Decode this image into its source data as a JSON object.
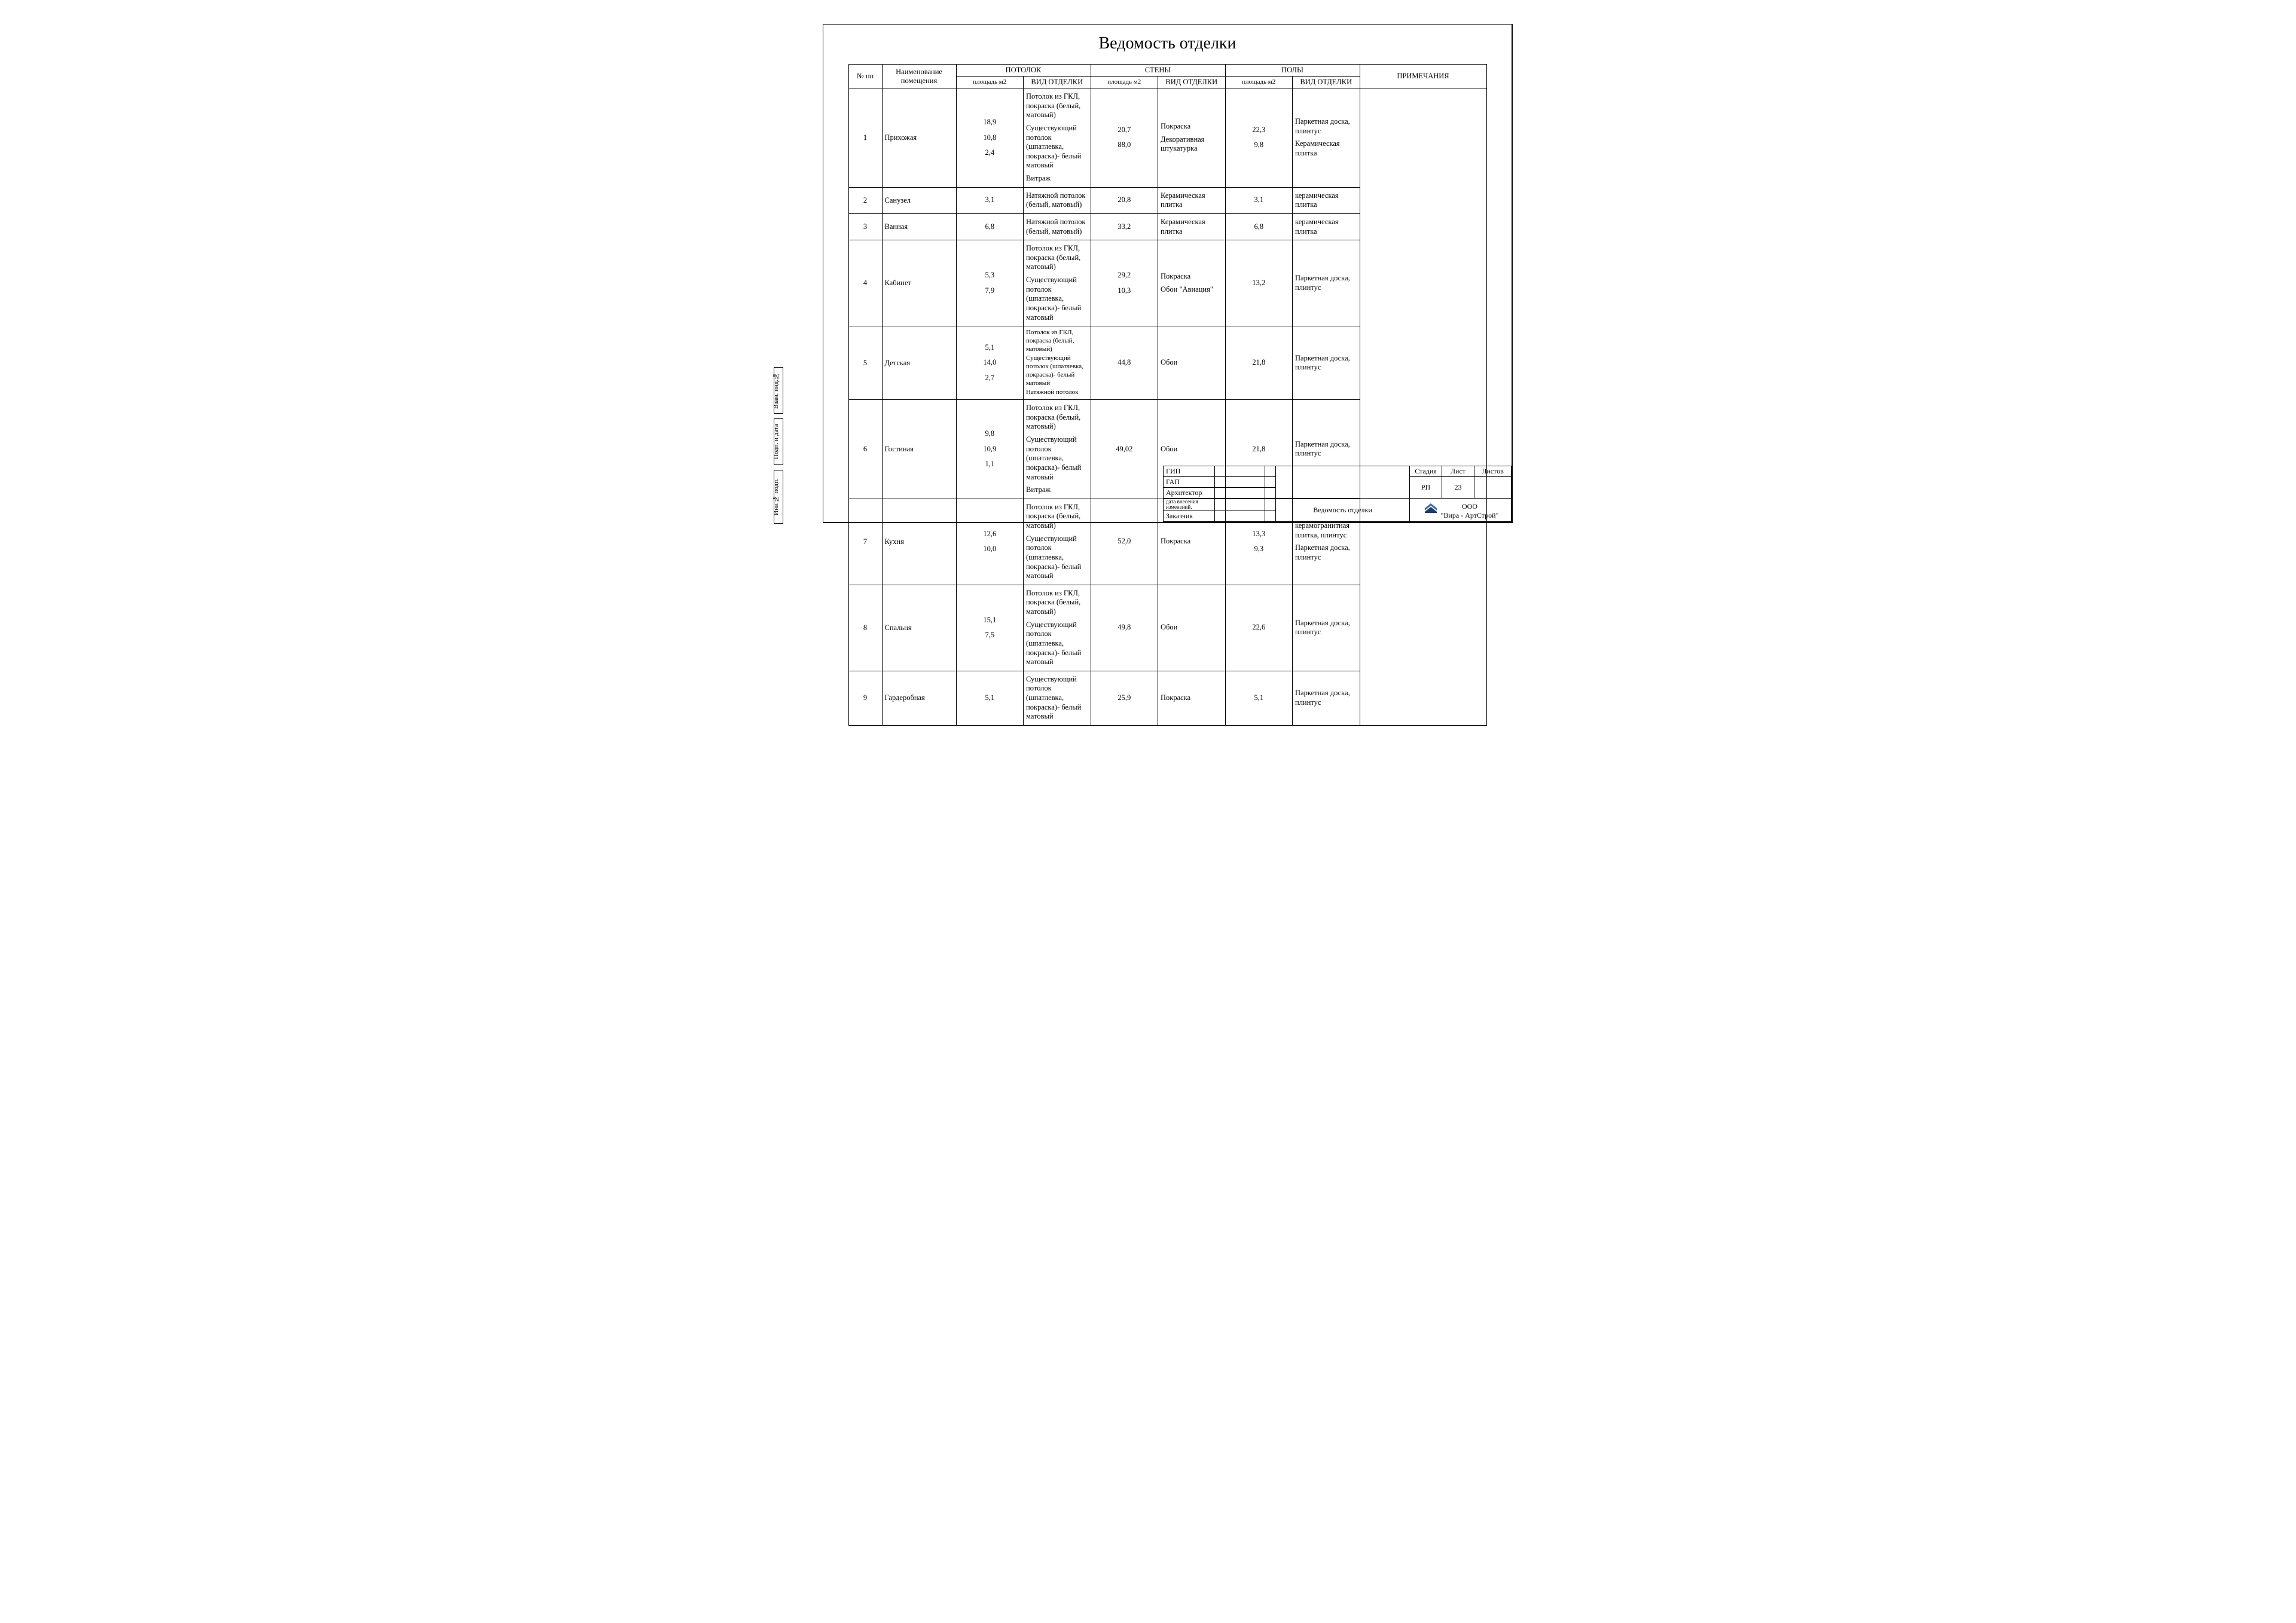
{
  "title": "Ведомость отделки",
  "side_labels": {
    "s1": "Взам. инд.№",
    "s2": "Подп. и дата",
    "s3": "Инв.№ подп."
  },
  "columns": {
    "num": "№ пп",
    "room": "Наименование помещения",
    "ceiling": "ПОТОЛОК",
    "walls": "СТЕНЫ",
    "floors": "ПОЛЫ",
    "notes": "ПРИМЕЧАНИЯ",
    "area": "площадь м2",
    "finish": "ВИД  ОТДЕЛКИ"
  },
  "rows": [
    {
      "n": "1",
      "room": "Прихожая",
      "ceil_area": [
        "18,9",
        "10,8",
        "2,4"
      ],
      "ceil_desc": [
        "Потолок из ГКЛ, покраска  (белый, матовый)",
        "Существующий потолок (шпатлевка, покраска)- белый матовый",
        "Витраж"
      ],
      "wall_area": [
        "20,7",
        "88,0"
      ],
      "wall_desc": [
        "Покраска",
        "Декоративная штукатурка"
      ],
      "floor_area": [
        "22,3",
        "9,8"
      ],
      "floor_desc": [
        "Паркетная доска, плинтус",
        "Керамическая плитка"
      ]
    },
    {
      "n": "2",
      "room": "Санузел",
      "ceil_area": [
        "3,1"
      ],
      "ceil_desc": [
        "Натяжной потолок  (белый, матовый)"
      ],
      "wall_area": [
        "20,8"
      ],
      "wall_desc": [
        "Керамическая плитка"
      ],
      "floor_area": [
        "3,1"
      ],
      "floor_desc": [
        "керамическая плитка"
      ]
    },
    {
      "n": "3",
      "room": "Ванная",
      "ceil_area": [
        "6,8"
      ],
      "ceil_desc": [
        "Натяжной потолок  (белый, матовый)"
      ],
      "wall_area": [
        "33,2"
      ],
      "wall_desc": [
        "Керамическая плитка"
      ],
      "floor_area": [
        "6,8"
      ],
      "floor_desc": [
        "керамическая плитка"
      ]
    },
    {
      "n": "4",
      "room": "Кабинет",
      "ceil_area": [
        "5,3",
        "7,9"
      ],
      "ceil_desc": [
        "Потолок из ГКЛ, покраска (белый, матовый)",
        "Существующий потолок (шпатлевка, покраска)- белый матовый"
      ],
      "wall_area": [
        "29,2",
        "10,3"
      ],
      "wall_desc": [
        "Покраска",
        "Обои \"Авиация\""
      ],
      "floor_area": [
        "13,2"
      ],
      "floor_desc": [
        "Паркетная доска, плинтус"
      ]
    },
    {
      "n": "5",
      "room": "Детская",
      "ceil_area": [
        "5,1",
        "14,0",
        "2,7"
      ],
      "ceil_desc": [
        "Потолок из ГКЛ, покраска (белый, матовый)",
        "Существующий потолок (шпатлевка, покраска)- белый матовый",
        "Натяжной потолок"
      ],
      "tight": true,
      "wall_area": [
        "44,8"
      ],
      "wall_desc": [
        "Обои"
      ],
      "floor_area": [
        "21,8"
      ],
      "floor_desc": [
        "Паркетная доска, плинтус"
      ]
    },
    {
      "n": "6",
      "room": "Гостиная",
      "ceil_area": [
        "9,8",
        "10,9",
        "1,1"
      ],
      "ceil_desc": [
        "Потолок из ГКЛ, покраска (белый, матовый)",
        "Существующий потолок (шпатлевка, покраска)- белый матовый",
        "Витраж"
      ],
      "wall_area": [
        "49,02"
      ],
      "wall_desc": [
        "Обои"
      ],
      "floor_area": [
        "21,8"
      ],
      "floor_desc": [
        "Паркетная доска, плинтус"
      ]
    },
    {
      "n": "7",
      "room": "Кухня",
      "ceil_area": [
        "12,6",
        "10,0"
      ],
      "ceil_desc": [
        "Потолок из ГКЛ, покраска (белый, матовый)",
        "Существующий потолок (шпатлевка, покраска)- белый матовый"
      ],
      "wall_area": [
        "52,0"
      ],
      "wall_desc": [
        "Покраска"
      ],
      "floor_area": [
        "13,3",
        "9,3"
      ],
      "floor_desc": [
        "керамогранитная плитка, плинтус",
        "Паркетная доска, плинтус"
      ]
    },
    {
      "n": "8",
      "room": "Спальня",
      "ceil_area": [
        "15,1",
        "7,5"
      ],
      "ceil_desc": [
        "Потолок из ГКЛ, покраска (белый, матовый)",
        "Существующий потолок (шпатлевка, покраска)- белый матовый"
      ],
      "wall_area": [
        "49,8"
      ],
      "wall_desc": [
        "Обои"
      ],
      "floor_area": [
        "22,6"
      ],
      "floor_desc": [
        "Паркетная доска, плинтус"
      ]
    },
    {
      "n": "9",
      "room": "Гардеробная",
      "ceil_area": [
        "5,1"
      ],
      "ceil_desc": [
        "Существующий потолок (шпатлевка, покраска)- белый матовый"
      ],
      "wall_area": [
        "25,9"
      ],
      "wall_desc": [
        "Покраска"
      ],
      "floor_area": [
        "5,1"
      ],
      "floor_desc": [
        "Паркетная доска, плинтус"
      ]
    }
  ],
  "stamp": {
    "roles": {
      "gip": "ГИП",
      "gap": "ГАП",
      "arch": "Архитектор",
      "date": "дата  внесения изменений.",
      "client": "Заказчик"
    },
    "headers": {
      "stage": "Стадия",
      "sheet": "Лист",
      "sheets": "Листов"
    },
    "stage_val": "РП",
    "sheet_val": "23",
    "doc_name": "Ведомость отделки",
    "company1": "ООО",
    "company2": "\"Вира - АртСтрой\""
  },
  "colors": {
    "line": "#000000",
    "bg": "#ffffff",
    "logo1": "#3b6ea5",
    "logo2": "#1f3b66"
  }
}
